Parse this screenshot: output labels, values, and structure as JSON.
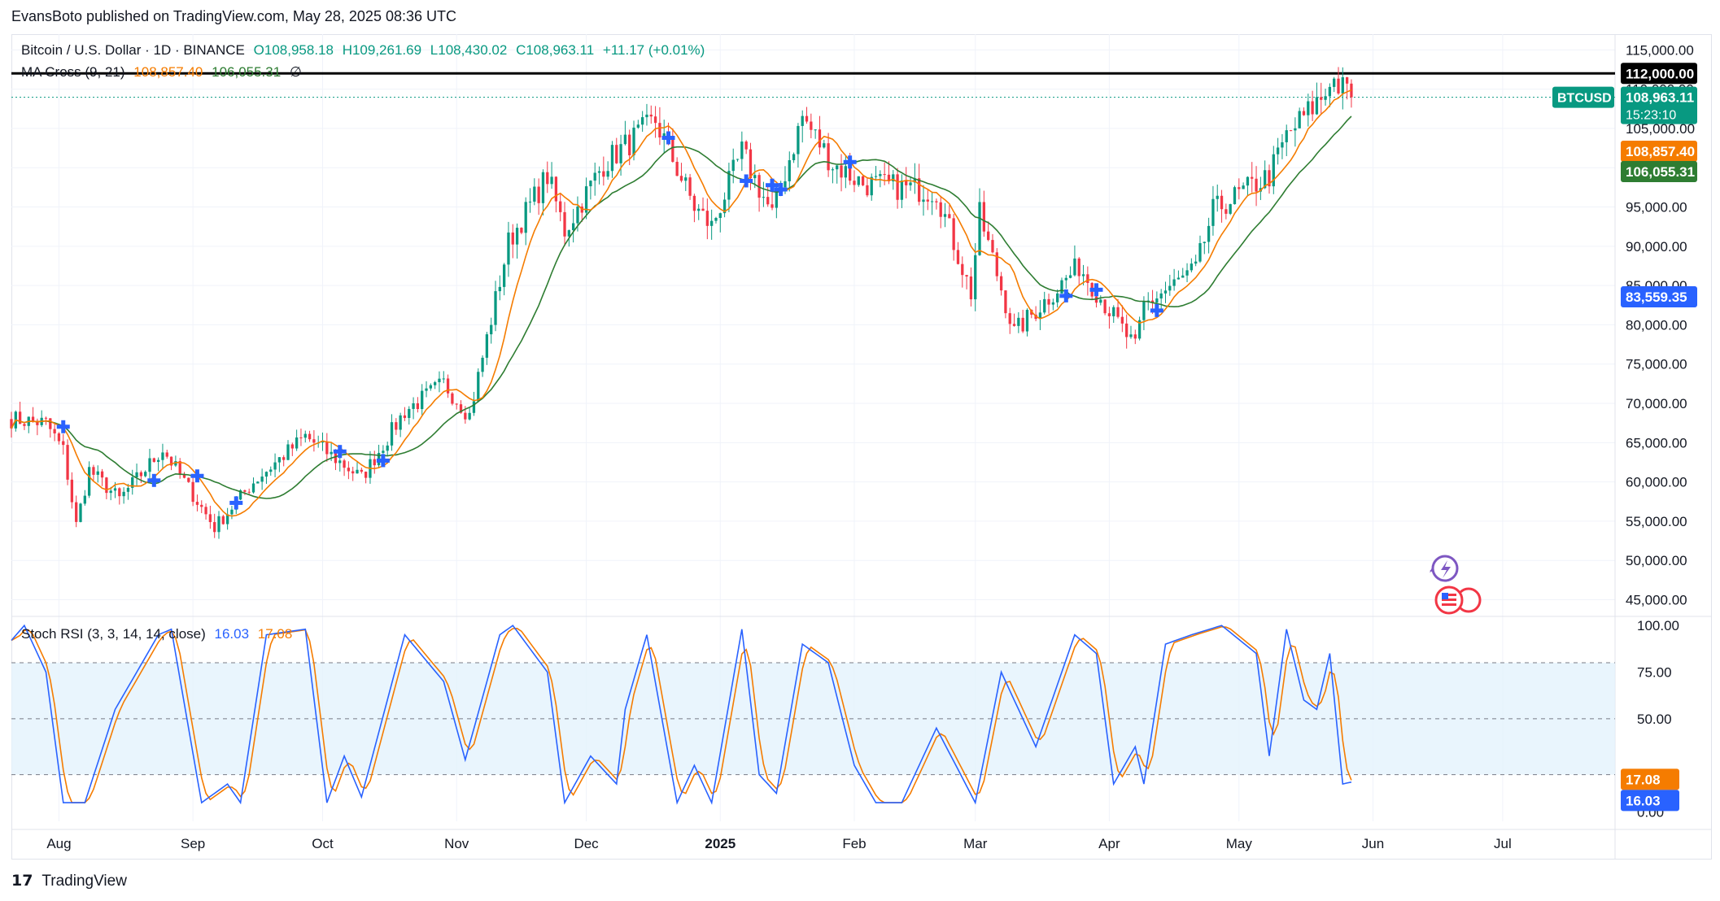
{
  "published_line": "EvansBoto published on TradingView.com, May 28, 2025 08:36 UTC",
  "legend": {
    "symbol": "Bitcoin / U.S. Dollar · 1D · BINANCE",
    "open": "O108,958.18",
    "high": "H109,261.69",
    "low": "L108,430.02",
    "close": "C108,963.11",
    "change": "+11.17 (+0.01%)",
    "ma_name": "MA Cross (9, 21)",
    "ma_fast_value": "108,857.40",
    "ma_slow_value": "106,055.31",
    "ma_extra": "∅",
    "stoch_name": "Stoch RSI (3, 3, 14, 14, close)",
    "stoch_k_value": "16.03",
    "stoch_d_value": "17.08"
  },
  "labels": {
    "resistance": "112,000.00",
    "symbol_tag": "BTCUSD",
    "last_price": "108,963.11",
    "countdown": "15:23:10",
    "ma_fast": "108,857.40",
    "ma_slow": "106,055.31",
    "support": "83,559.35",
    "stoch_d": "17.08",
    "stoch_k": "16.03"
  },
  "footer": {
    "brand": "TradingView"
  },
  "colors": {
    "up": "#089981",
    "down": "#f23645",
    "ma_fast": "#f57c00",
    "ma_slow": "#2e7d32",
    "stoch_k": "#2962ff",
    "stoch_d": "#f57c00",
    "cross": "#2962ff",
    "band": "#e3f2fd"
  },
  "chart_data": {
    "type": "candlestick",
    "x_axis_labels": [
      "Aug",
      "Sep",
      "Oct",
      "Nov",
      "Dec",
      "2025",
      "Feb",
      "Mar",
      "Apr",
      "May",
      "Jun",
      "Jul"
    ],
    "x_axis_months": [
      "2024-08-01",
      "2024-09-01",
      "2024-10-01",
      "2024-11-01",
      "2024-12-01",
      "2025-01-01",
      "2025-02-01",
      "2025-03-01",
      "2025-04-01",
      "2025-05-01",
      "2025-06-01",
      "2025-07-01"
    ],
    "price_axis": {
      "ticks": [
        115000,
        110000,
        105000,
        100000,
        95000,
        90000,
        85000,
        80000,
        75000,
        70000,
        65000,
        60000,
        55000,
        50000,
        45000
      ],
      "tick_labels": [
        "115,000.00",
        "110,000.00",
        "105,000.00",
        "100,000.00",
        "95,000.00",
        "90,000.00",
        "85,000.00",
        "80,000.00",
        "75,000.00",
        "70,000.00",
        "65,000.00",
        "60,000.00",
        "55,000.00",
        "50,000.00",
        "45,000.00"
      ],
      "range": [
        43500,
        117000
      ]
    },
    "stoch_axis": {
      "ticks": [
        100,
        75,
        50,
        0
      ],
      "tick_labels": [
        "100.00",
        "75.00",
        "50.00",
        "0.00"
      ],
      "band": [
        20,
        80
      ],
      "middle": 50,
      "range": [
        -5,
        104
      ]
    },
    "horizontal_levels": {
      "resistance": 112000,
      "last_price": 108963.11,
      "support": 83559.35
    },
    "close_anchors": [
      [
        "2024-07-21",
        68000
      ],
      [
        "2024-07-29",
        67500
      ],
      [
        "2024-08-02",
        64000
      ],
      [
        "2024-08-05",
        54500
      ],
      [
        "2024-08-08",
        61500
      ],
      [
        "2024-08-15",
        57800
      ],
      [
        "2024-08-25",
        64200
      ],
      [
        "2024-09-06",
        54200
      ],
      [
        "2024-09-15",
        60000
      ],
      [
        "2024-09-27",
        65800
      ],
      [
        "2024-10-10",
        60500
      ],
      [
        "2024-10-20",
        69000
      ],
      [
        "2024-10-29",
        72500
      ],
      [
        "2024-11-04",
        68500
      ],
      [
        "2024-11-13",
        90500
      ],
      [
        "2024-11-22",
        99000
      ],
      [
        "2024-11-26",
        92000
      ],
      [
        "2024-12-05",
        100500
      ],
      [
        "2024-12-17",
        106000
      ],
      [
        "2024-12-26",
        95000
      ],
      [
        "2024-12-30",
        92500
      ],
      [
        "2025-01-06",
        102000
      ],
      [
        "2025-01-13",
        94000
      ],
      [
        "2025-01-20",
        106500
      ],
      [
        "2025-01-27",
        100500
      ],
      [
        "2025-02-03",
        98000
      ],
      [
        "2025-02-20",
        97000
      ],
      [
        "2025-02-28",
        84000
      ],
      [
        "2025-03-02",
        94000
      ],
      [
        "2025-03-10",
        79000
      ],
      [
        "2025-03-25",
        87500
      ],
      [
        "2025-04-07",
        77000
      ],
      [
        "2025-04-09",
        82500
      ],
      [
        "2025-04-21",
        87000
      ],
      [
        "2025-04-25",
        94500
      ],
      [
        "2025-05-08",
        99000
      ],
      [
        "2025-05-12",
        104000
      ],
      [
        "2025-05-21",
        109500
      ],
      [
        "2025-05-22",
        111500
      ],
      [
        "2025-05-27",
        108963
      ]
    ],
    "stoch_k_anchors": [
      [
        "2024-07-21",
        92
      ],
      [
        "2024-07-24",
        100
      ],
      [
        "2024-07-29",
        75
      ],
      [
        "2024-08-02",
        5
      ],
      [
        "2024-08-07",
        5
      ],
      [
        "2024-08-14",
        55
      ],
      [
        "2024-08-24",
        95
      ],
      [
        "2024-08-27",
        98
      ],
      [
        "2024-09-03",
        5
      ],
      [
        "2024-09-09",
        15
      ],
      [
        "2024-09-12",
        5
      ],
      [
        "2024-09-18",
        95
      ],
      [
        "2024-09-27",
        98
      ],
      [
        "2024-10-02",
        5
      ],
      [
        "2024-10-06",
        30
      ],
      [
        "2024-10-10",
        8
      ],
      [
        "2024-10-20",
        95
      ],
      [
        "2024-10-29",
        70
      ],
      [
        "2024-11-03",
        28
      ],
      [
        "2024-11-11",
        95
      ],
      [
        "2024-11-14",
        100
      ],
      [
        "2024-11-22",
        75
      ],
      [
        "2024-11-26",
        5
      ],
      [
        "2024-12-02",
        30
      ],
      [
        "2024-12-08",
        15
      ],
      [
        "2024-12-10",
        55
      ],
      [
        "2024-12-15",
        95
      ],
      [
        "2024-12-22",
        5
      ],
      [
        "2024-12-26",
        25
      ],
      [
        "2024-12-30",
        5
      ],
      [
        "2025-01-06",
        98
      ],
      [
        "2025-01-10",
        20
      ],
      [
        "2025-01-14",
        10
      ],
      [
        "2025-01-20",
        90
      ],
      [
        "2025-01-26",
        80
      ],
      [
        "2025-02-01",
        25
      ],
      [
        "2025-02-06",
        5
      ],
      [
        "2025-02-12",
        5
      ],
      [
        "2025-02-20",
        45
      ],
      [
        "2025-03-01",
        5
      ],
      [
        "2025-03-07",
        75
      ],
      [
        "2025-03-15",
        35
      ],
      [
        "2025-03-24",
        95
      ],
      [
        "2025-03-29",
        85
      ],
      [
        "2025-04-02",
        15
      ],
      [
        "2025-04-07",
        35
      ],
      [
        "2025-04-09",
        15
      ],
      [
        "2025-04-14",
        90
      ],
      [
        "2025-04-20",
        95
      ],
      [
        "2025-04-27",
        100
      ],
      [
        "2025-05-05",
        85
      ],
      [
        "2025-05-08",
        30
      ],
      [
        "2025-05-12",
        98
      ],
      [
        "2025-05-16",
        60
      ],
      [
        "2025-05-19",
        55
      ],
      [
        "2025-05-22",
        85
      ],
      [
        "2025-05-25",
        15
      ],
      [
        "2025-05-27",
        16.03
      ]
    ],
    "series": [
      {
        "name": "MA Cross (9, 21)",
        "type": "line",
        "periods": [
          9,
          21
        ],
        "values": [
          108857.4,
          106055.31
        ]
      },
      {
        "name": "Stoch RSI (3, 3, 14, 14, close)",
        "type": "line",
        "values": [
          16.03,
          17.08
        ]
      }
    ],
    "ma_cross_markers": [
      "2024-08-02",
      "2024-08-23",
      "2024-09-02",
      "2024-09-11",
      "2024-10-05",
      "2024-10-15",
      "2024-12-20",
      "2025-01-07",
      "2025-01-13",
      "2025-01-15",
      "2025-01-31",
      "2025-03-22",
      "2025-03-29",
      "2025-04-12"
    ]
  }
}
